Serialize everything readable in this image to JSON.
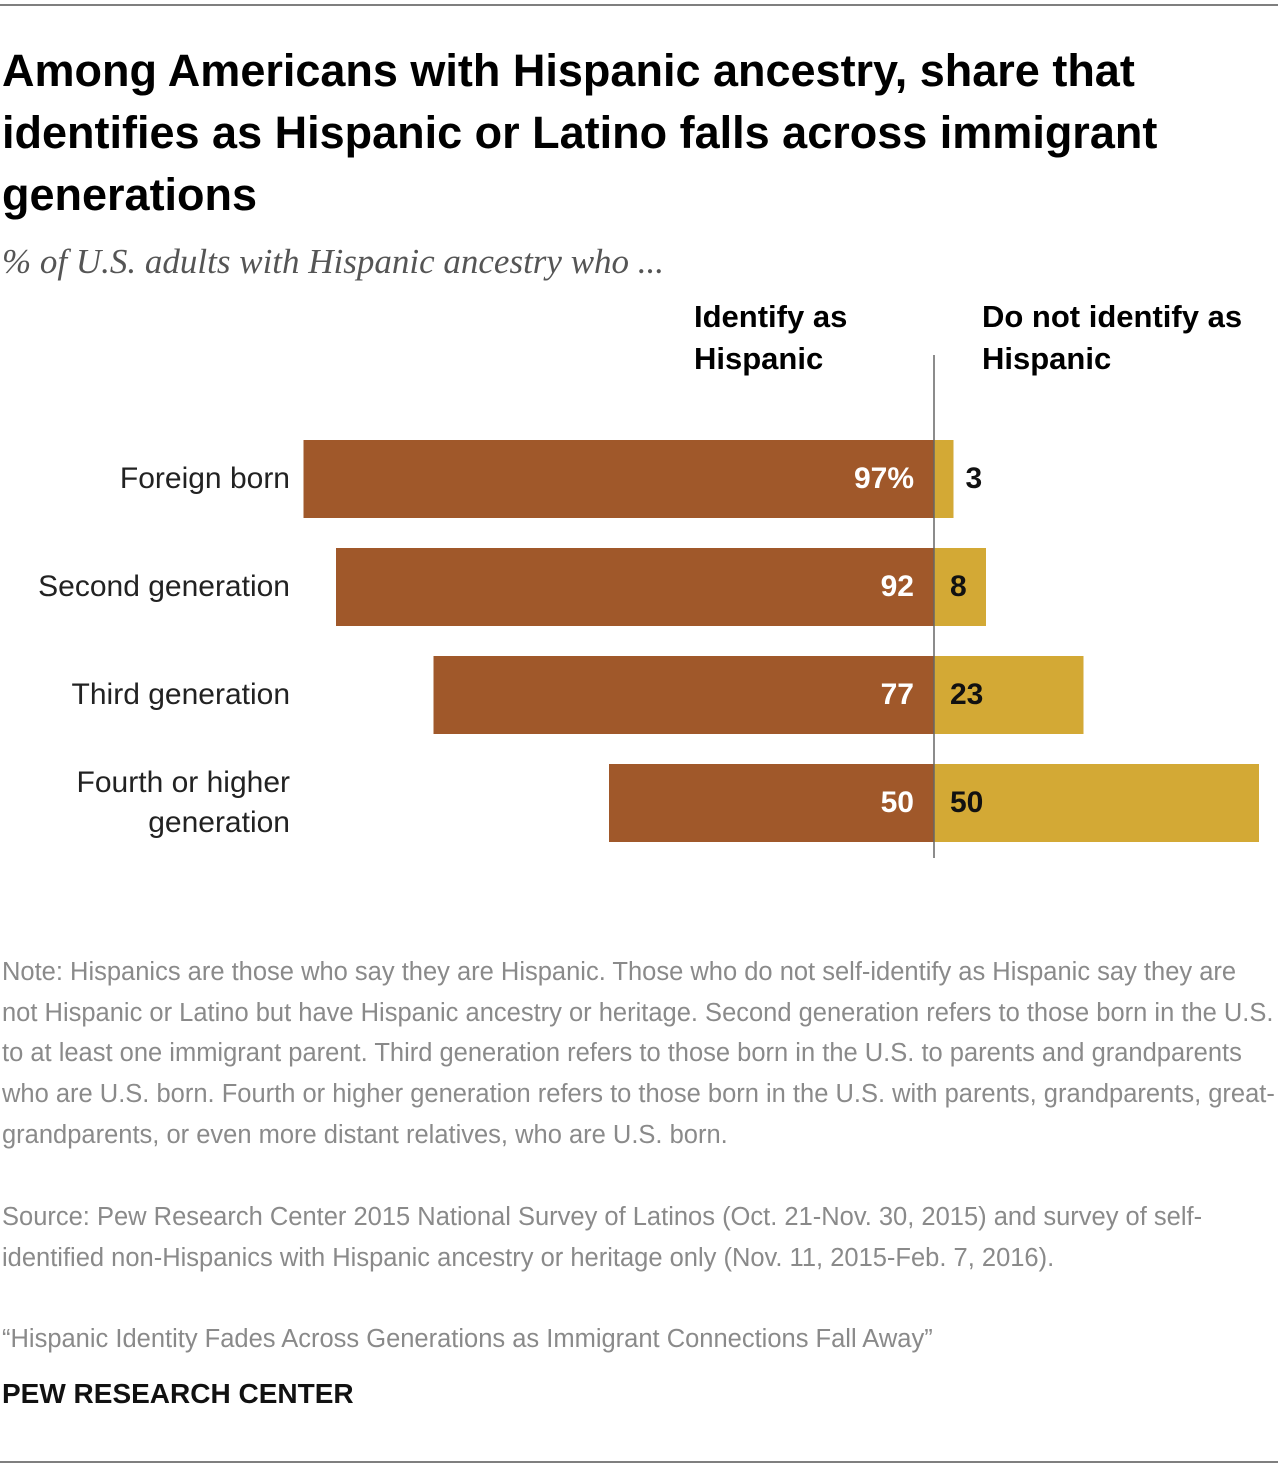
{
  "chart_data": {
    "type": "diverging-bar",
    "title": "Among Americans with Hispanic ancestry, share that identifies as Hispanic or Latino falls across immigrant generations",
    "subtitle": "% of U.S. adults with Hispanic ancestry who ...",
    "categories": [
      "Foreign born",
      "Second generation",
      "Third generation",
      "Fourth or higher generation"
    ],
    "series": [
      {
        "name": "Identify as Hispanic",
        "color": "#a0582a",
        "values": [
          97,
          92,
          77,
          50
        ],
        "value_labels": [
          "97%",
          "92",
          "77",
          "50"
        ]
      },
      {
        "name": "Do not identify as Hispanic",
        "color": "#d3a935",
        "values": [
          3,
          8,
          23,
          50
        ]
      }
    ],
    "note": "Note: Hispanics are those who say they are Hispanic. Those who do not self-identify as Hispanic say they are not Hispanic or Latino but have Hispanic ancestry or heritage. Second generation refers to those born in the U.S. to at least one immigrant parent. Third generation refers to those born in the U.S. to parents and grandparents who are U.S. born. Fourth or higher generation refers to those born in the U.S. with parents, grandparents, great-grandparents, or even more distant relatives, who are U.S. born.",
    "source": "Source: Pew Research Center 2015 National Survey of Latinos (Oct. 21-Nov. 30, 2015) and survey of self-identified non-Hispanics with Hispanic ancestry or heritage only (Nov. 11, 2015-Feb. 7, 2016).",
    "citation": "“Hispanic Identity Fades Across Generations as Immigrant Connections Fall Away”",
    "brand": "PEW RESEARCH CENTER"
  }
}
